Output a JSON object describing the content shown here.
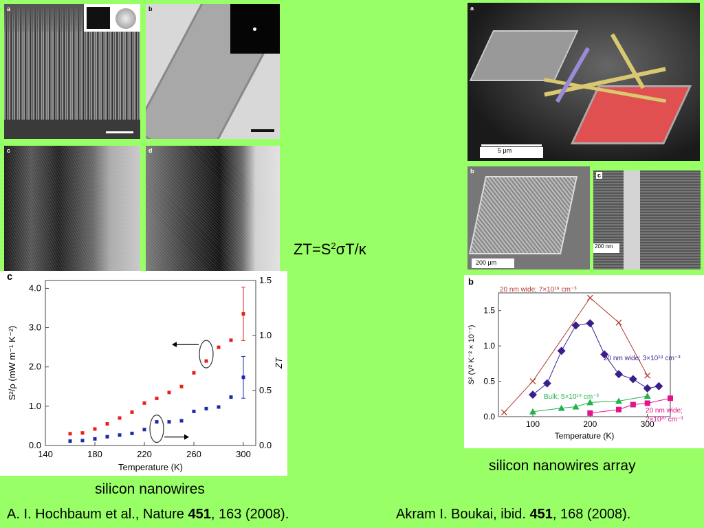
{
  "left_figure": {
    "panel_labels": [
      "a",
      "b",
      "c",
      "d"
    ],
    "plot_label": "c"
  },
  "right_figure": {
    "panel_labels": [
      "a",
      "b",
      "c"
    ],
    "plot_label": "b",
    "scalebar_a": "5 μm",
    "scalebar_b": "200 μm",
    "scalebar_c": "200 nm"
  },
  "formula": {
    "prefix": "ZT=S",
    "exp": "2",
    "suffix": "σT/κ"
  },
  "captions": {
    "left": "silicon nanowires",
    "right": "silicon nanowires array"
  },
  "references": {
    "left_pre": "A. I. Hochbaum  et al., Nature ",
    "left_vol": "451",
    "left_post": ", 163 (2008).",
    "right_pre": "Akram I. Boukai, ibid. ",
    "right_vol": "451",
    "right_post": ", 168 (2008)."
  },
  "chart_data": [
    {
      "type": "scatter",
      "xlabel": "Temperature (K)",
      "ylabel": "S²/ρ (mW m⁻¹ K⁻²)",
      "y2label": "ZT",
      "xlim": [
        140,
        310
      ],
      "ylim": [
        0,
        4.2
      ],
      "y2lim": [
        0,
        1.5
      ],
      "xticks": [
        140,
        180,
        220,
        260,
        300
      ],
      "xtick_labels": [
        "140",
        "180",
        "220",
        "260",
        "300"
      ],
      "yticks": [
        0,
        1,
        2,
        3,
        4
      ],
      "ytick_labels": [
        "0.0",
        "1.0",
        "2.0",
        "3.0",
        "4.0"
      ],
      "y2ticks": [
        0,
        0.5,
        1.0,
        1.5
      ],
      "y2tick_labels": [
        "0.0",
        "0.5",
        "1.0",
        "1.5"
      ],
      "series": [
        {
          "color": "#e8201c",
          "axis": "left",
          "x": [
            160,
            170,
            180,
            190,
            200,
            210,
            220,
            230,
            240,
            250,
            260,
            270,
            280,
            290,
            300
          ],
          "y": [
            0.3,
            0.32,
            0.42,
            0.55,
            0.7,
            0.85,
            1.08,
            1.2,
            1.35,
            1.5,
            1.85,
            2.15,
            2.5,
            2.68,
            3.35
          ],
          "err": [
            0,
            0,
            0,
            0,
            0,
            0,
            0,
            0,
            0,
            0,
            0,
            0,
            0,
            0,
            0.68
          ]
        },
        {
          "color": "#1c2aa8",
          "axis": "right",
          "x": [
            160,
            170,
            180,
            190,
            200,
            210,
            220,
            230,
            240,
            250,
            260,
            270,
            280,
            290,
            300
          ],
          "y": [
            0.04,
            0.045,
            0.06,
            0.08,
            0.095,
            0.11,
            0.145,
            0.215,
            0.215,
            0.225,
            0.31,
            0.335,
            0.35,
            0.44,
            0.62
          ],
          "err": [
            0,
            0,
            0,
            0,
            0,
            0,
            0,
            0,
            0,
            0,
            0,
            0,
            0,
            0,
            0.19
          ]
        }
      ]
    },
    {
      "type": "line",
      "xlabel": "Temperature (K)",
      "ylabel": "S² (V² K⁻² × 10⁻⁷)",
      "xlim": [
        40,
        340
      ],
      "ylim": [
        0,
        1.75
      ],
      "xticks": [
        100,
        200,
        300
      ],
      "xtick_labels": [
        "100",
        "200",
        "300"
      ],
      "yticks": [
        0,
        0.5,
        1.0,
        1.5
      ],
      "ytick_labels": [
        "0.0",
        "0.5",
        "1.0",
        "1.5"
      ],
      "series": [
        {
          "name": "20 nm wide; 7×10¹⁹ cm⁻³",
          "color": "#b03a2e",
          "marker": "x",
          "x": [
            50,
            100,
            200,
            250,
            300
          ],
          "y": [
            0.06,
            0.5,
            1.68,
            1.33,
            0.58
          ]
        },
        {
          "name": "20 nm wide; 3×10¹⁹ cm⁻³",
          "color": "#3a1f8c",
          "marker": "diamond",
          "x": [
            100,
            125,
            150,
            175,
            200,
            225,
            250,
            275,
            300,
            320
          ],
          "y": [
            0.31,
            0.47,
            0.93,
            1.29,
            1.32,
            0.88,
            0.6,
            0.53,
            0.4,
            0.43
          ]
        },
        {
          "name": "Bulk; 5×10¹⁹ cm⁻³",
          "color": "#22b24c",
          "marker": "triangle",
          "x": [
            100,
            150,
            175,
            200,
            250,
            300
          ],
          "y": [
            0.07,
            0.12,
            0.14,
            0.2,
            0.22,
            0.29
          ]
        },
        {
          "name": "20 nm wide; 2×10²⁰ cm⁻³",
          "color": "#e0148c",
          "marker": "square",
          "x": [
            200,
            250,
            275,
            300,
            350
          ],
          "y": [
            0.05,
            0.1,
            0.17,
            0.19,
            0.26
          ]
        }
      ]
    }
  ]
}
